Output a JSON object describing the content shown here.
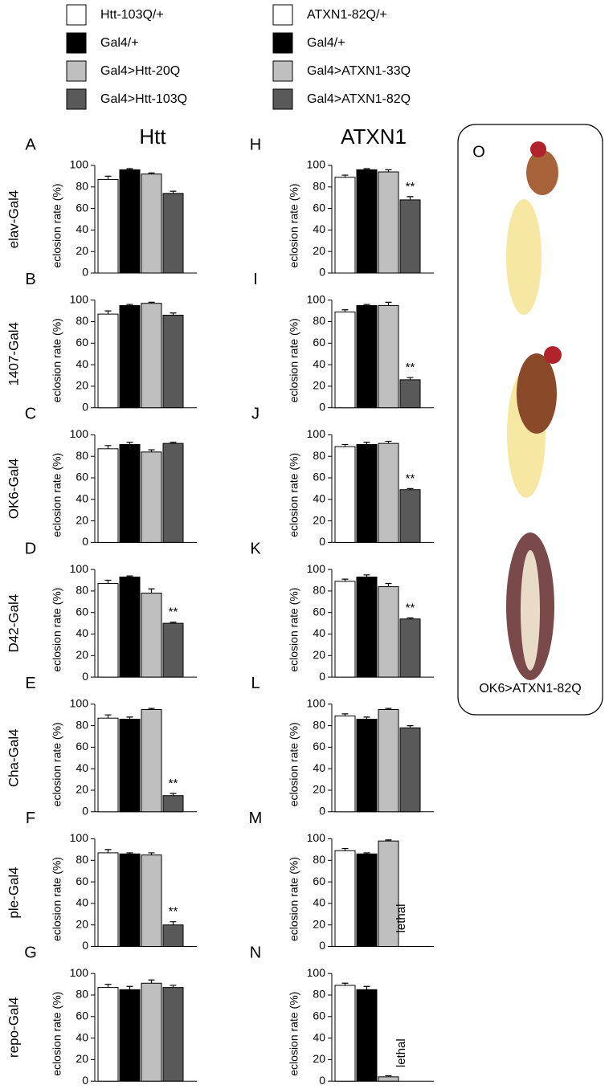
{
  "legends": [
    {
      "entries": [
        {
          "name": "Htt-103Q/+",
          "color": "#ffffff"
        },
        {
          "name": "Gal4/+",
          "color": "#000000"
        },
        {
          "name": "Gal4>Htt-20Q",
          "color": "#bfbfbf"
        },
        {
          "name": "Gal4>Htt-103Q",
          "color": "#595959"
        }
      ]
    },
    {
      "entries": [
        {
          "name": "ATXN1-82Q/+",
          "color": "#ffffff"
        },
        {
          "name": "Gal4/+",
          "color": "#000000"
        },
        {
          "name": "Gal4>ATXN1-33Q",
          "color": "#bfbfbf"
        },
        {
          "name": "Gal4>ATXN1-82Q",
          "color": "#595959"
        }
      ]
    }
  ],
  "column_titles": [
    "Htt",
    "ATXN1"
  ],
  "row_labels": [
    "elav-Gal4",
    "1407-Gal4",
    "OK6-Gal4",
    "D42-Gal4",
    "Cha-Gal4",
    "ple-Gal4",
    "repo-Gal4"
  ],
  "photo_panel": {
    "letter": "O",
    "caption": "OK6>ATXN1-82Q"
  },
  "chart_data": [
    {
      "type": "bar",
      "panel": "A",
      "ylabel": "eclosion rate (%)",
      "values": [
        87,
        96,
        92,
        74
      ],
      "errors": [
        3,
        1,
        1,
        2
      ],
      "annotations": [
        null,
        null,
        null,
        null
      ],
      "colors": [
        "#ffffff",
        "#000000",
        "#bfbfbf",
        "#595959"
      ],
      "ylim": [
        0,
        100
      ],
      "yticks": [
        0,
        20,
        40,
        60,
        80,
        100
      ]
    },
    {
      "type": "bar",
      "panel": "B",
      "ylabel": "eclosion rate (%)",
      "values": [
        87,
        95,
        97,
        86
      ],
      "errors": [
        3,
        1,
        1,
        2
      ],
      "annotations": [
        null,
        null,
        null,
        null
      ],
      "colors": [
        "#ffffff",
        "#000000",
        "#bfbfbf",
        "#595959"
      ],
      "ylim": [
        0,
        100
      ],
      "yticks": [
        0,
        20,
        40,
        60,
        80,
        100
      ]
    },
    {
      "type": "bar",
      "panel": "C",
      "ylabel": "eclosion rate (%)",
      "values": [
        87,
        91,
        84,
        92
      ],
      "errors": [
        3,
        2,
        2,
        1
      ],
      "annotations": [
        null,
        null,
        null,
        null
      ],
      "colors": [
        "#ffffff",
        "#000000",
        "#bfbfbf",
        "#595959"
      ],
      "ylim": [
        0,
        100
      ],
      "yticks": [
        0,
        20,
        40,
        60,
        80,
        100
      ]
    },
    {
      "type": "bar",
      "panel": "D",
      "ylabel": "eclosion rate (%)",
      "values": [
        87,
        93,
        78,
        50
      ],
      "errors": [
        3,
        1,
        4,
        1
      ],
      "annotations": [
        null,
        null,
        null,
        "**"
      ],
      "colors": [
        "#ffffff",
        "#000000",
        "#bfbfbf",
        "#595959"
      ],
      "ylim": [
        0,
        100
      ],
      "yticks": [
        0,
        20,
        40,
        60,
        80,
        100
      ]
    },
    {
      "type": "bar",
      "panel": "E",
      "ylabel": "eclosion rate (%)",
      "values": [
        87,
        86,
        95,
        15
      ],
      "errors": [
        3,
        2,
        1,
        2
      ],
      "annotations": [
        null,
        null,
        null,
        "**"
      ],
      "colors": [
        "#ffffff",
        "#000000",
        "#bfbfbf",
        "#595959"
      ],
      "ylim": [
        0,
        100
      ],
      "yticks": [
        0,
        20,
        40,
        60,
        80,
        100
      ]
    },
    {
      "type": "bar",
      "panel": "F",
      "ylabel": "eclosion rate (%)",
      "values": [
        87,
        86,
        85,
        20
      ],
      "errors": [
        3,
        1,
        2,
        3
      ],
      "annotations": [
        null,
        null,
        null,
        "**"
      ],
      "colors": [
        "#ffffff",
        "#000000",
        "#bfbfbf",
        "#595959"
      ],
      "ylim": [
        0,
        100
      ],
      "yticks": [
        0,
        20,
        40,
        60,
        80,
        100
      ]
    },
    {
      "type": "bar",
      "panel": "G",
      "ylabel": "eclosion rate (%)",
      "values": [
        87,
        85,
        91,
        87
      ],
      "errors": [
        3,
        3,
        3,
        2
      ],
      "annotations": [
        null,
        null,
        null,
        null
      ],
      "colors": [
        "#ffffff",
        "#000000",
        "#bfbfbf",
        "#595959"
      ],
      "ylim": [
        0,
        100
      ],
      "yticks": [
        0,
        20,
        40,
        60,
        80,
        100
      ]
    },
    {
      "type": "bar",
      "panel": "H",
      "ylabel": "eclosion rate (%)",
      "values": [
        89,
        96,
        94,
        68
      ],
      "errors": [
        2,
        1,
        2,
        3
      ],
      "annotations": [
        null,
        null,
        null,
        "**"
      ],
      "colors": [
        "#ffffff",
        "#000000",
        "#bfbfbf",
        "#595959"
      ],
      "ylim": [
        0,
        100
      ],
      "yticks": [
        0,
        20,
        40,
        60,
        80,
        100
      ]
    },
    {
      "type": "bar",
      "panel": "I",
      "ylabel": "eclosion rate (%)",
      "values": [
        89,
        95,
        95,
        26
      ],
      "errors": [
        2,
        1,
        3,
        2
      ],
      "annotations": [
        null,
        null,
        null,
        "**"
      ],
      "colors": [
        "#ffffff",
        "#000000",
        "#bfbfbf",
        "#595959"
      ],
      "ylim": [
        0,
        100
      ],
      "yticks": [
        0,
        20,
        40,
        60,
        80,
        100
      ]
    },
    {
      "type": "bar",
      "panel": "J",
      "ylabel": "eclosion rate (%)",
      "values": [
        89,
        91,
        92,
        49
      ],
      "errors": [
        2,
        2,
        2,
        1
      ],
      "annotations": [
        null,
        null,
        null,
        "**"
      ],
      "colors": [
        "#ffffff",
        "#000000",
        "#bfbfbf",
        "#595959"
      ],
      "ylim": [
        0,
        100
      ],
      "yticks": [
        0,
        20,
        40,
        60,
        80,
        100
      ]
    },
    {
      "type": "bar",
      "panel": "K",
      "ylabel": "eclosion rate (%)",
      "values": [
        89,
        93,
        84,
        54
      ],
      "errors": [
        2,
        2,
        3,
        1
      ],
      "annotations": [
        null,
        null,
        null,
        "**"
      ],
      "colors": [
        "#ffffff",
        "#000000",
        "#bfbfbf",
        "#595959"
      ],
      "ylim": [
        0,
        100
      ],
      "yticks": [
        0,
        20,
        40,
        60,
        80,
        100
      ]
    },
    {
      "type": "bar",
      "panel": "L",
      "ylabel": "eclosion rate (%)",
      "values": [
        89,
        86,
        95,
        78
      ],
      "errors": [
        2,
        2,
        1,
        2
      ],
      "annotations": [
        null,
        null,
        null,
        null
      ],
      "colors": [
        "#ffffff",
        "#000000",
        "#bfbfbf",
        "#595959"
      ],
      "ylim": [
        0,
        100
      ],
      "yticks": [
        0,
        20,
        40,
        60,
        80,
        100
      ]
    },
    {
      "type": "bar",
      "panel": "M",
      "ylabel": "eclosion rate (%)",
      "values": [
        89,
        86,
        98,
        null
      ],
      "errors": [
        2,
        1,
        1,
        null
      ],
      "annotations": [
        null,
        null,
        null,
        "lethal"
      ],
      "colors": [
        "#ffffff",
        "#000000",
        "#bfbfbf",
        "#595959"
      ],
      "ylim": [
        0,
        100
      ],
      "yticks": [
        0,
        20,
        40,
        60,
        80,
        100
      ]
    },
    {
      "type": "bar",
      "panel": "N",
      "ylabel": "eclosion rate (%)",
      "values": [
        89,
        85,
        4,
        null
      ],
      "errors": [
        2,
        3,
        1,
        null
      ],
      "annotations": [
        null,
        null,
        null,
        "lethal"
      ],
      "colors": [
        "#ffffff",
        "#000000",
        "#bfbfbf",
        "#595959"
      ],
      "ylim": [
        0,
        100
      ],
      "yticks": [
        0,
        20,
        40,
        60,
        80,
        100
      ]
    }
  ]
}
